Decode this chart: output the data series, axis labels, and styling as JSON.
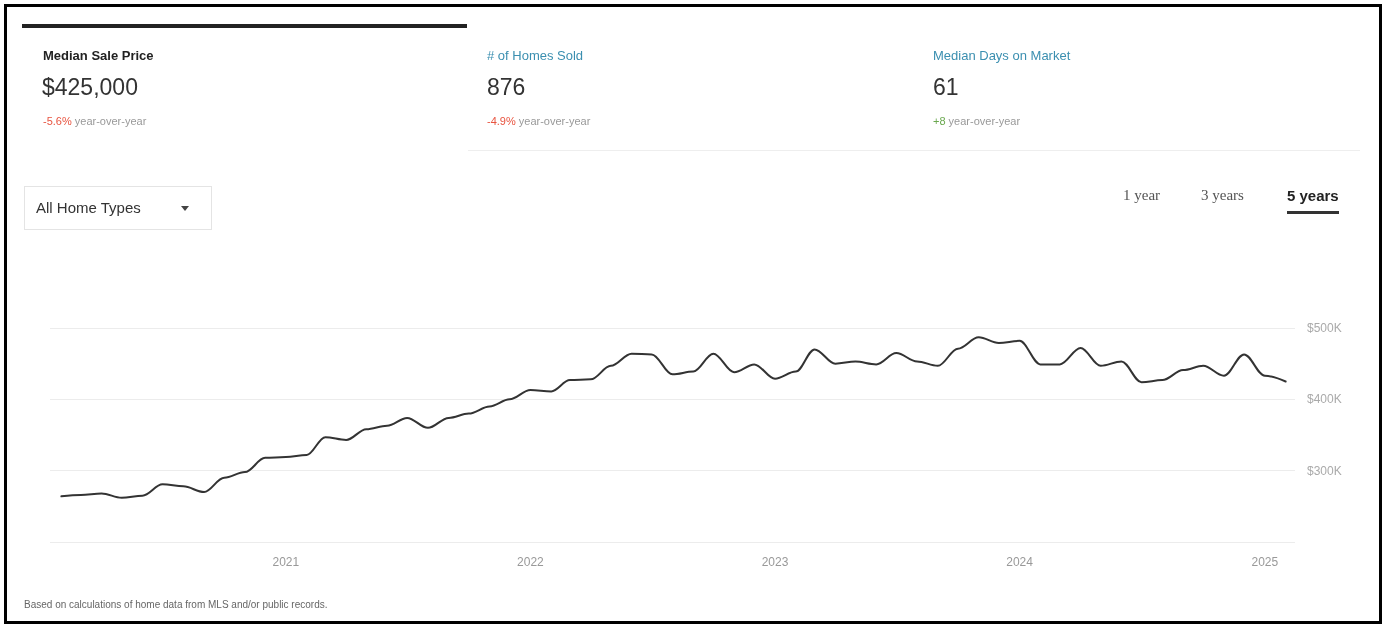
{
  "chart_data": {
    "type": "line",
    "title": "Median Sale Price",
    "subtitle": "$425,000",
    "annotations": [
      "-5.6% year-over-year",
      "# of Homes Sold",
      "876",
      "-4.9% year-over-year",
      "Median Days on Market",
      "61",
      "+8 year-over-year",
      "All Home Types",
      "1 year",
      "3 years",
      "5 years",
      "Based on calculations of home data from MLS and/or public records."
    ],
    "x": [
      "2020-02",
      "2020-03",
      "2020-04",
      "2020-05",
      "2020-06",
      "2020-07",
      "2020-08",
      "2020-09",
      "2020-10",
      "2020-11",
      "2020-12",
      "2021-01",
      "2021-02",
      "2021-03",
      "2021-04",
      "2021-05",
      "2021-06",
      "2021-07",
      "2021-08",
      "2021-09",
      "2021-10",
      "2021-11",
      "2021-12",
      "2022-01",
      "2022-02",
      "2022-03",
      "2022-04",
      "2022-05",
      "2022-06",
      "2022-07",
      "2022-08",
      "2022-09",
      "2022-10",
      "2022-11",
      "2022-12",
      "2023-01",
      "2023-02",
      "2023-03",
      "2023-04",
      "2023-05",
      "2023-06",
      "2023-07",
      "2023-08",
      "2023-09",
      "2023-10",
      "2023-11",
      "2023-12",
      "2024-01",
      "2024-02",
      "2024-03",
      "2024-04",
      "2024-05",
      "2024-06",
      "2024-07",
      "2024-08",
      "2024-09",
      "2024-10",
      "2024-11",
      "2024-12",
      "2025-01",
      "2025-02"
    ],
    "series": [
      {
        "color": "#333333",
        "values": [
          264000,
          266000,
          268000,
          262000,
          265000,
          281000,
          278000,
          270000,
          290000,
          298000,
          318000,
          319000,
          322000,
          347000,
          343000,
          358000,
          363000,
          374000,
          360000,
          374000,
          380000,
          390000,
          400000,
          413000,
          411000,
          427000,
          428000,
          447000,
          464000,
          463000,
          435000,
          439000,
          464000,
          438000,
          449000,
          429000,
          439000,
          470000,
          450000,
          453000,
          449000,
          465000,
          453000,
          447000,
          471000,
          487000,
          479000,
          482000,
          449000,
          449000,
          472000,
          447000,
          453000,
          424000,
          427000,
          441000,
          447000,
          433000,
          463000,
          433000,
          425000
        ]
      }
    ],
    "xlim": [
      "2020-01-15",
      "2025-02-15"
    ],
    "xticks": [
      "2021",
      "2022",
      "2023",
      "2024",
      "2025"
    ],
    "ylim": [
      200000,
      500000
    ],
    "yticks": [
      {
        "value": 200000,
        "label": null
      },
      {
        "value": 300000,
        "label": "$300K"
      },
      {
        "value": 400000,
        "label": "$400K"
      },
      {
        "value": 500000,
        "label": "$500K"
      }
    ],
    "grid": "y",
    "marker": "none",
    "line_style": "solid"
  }
}
